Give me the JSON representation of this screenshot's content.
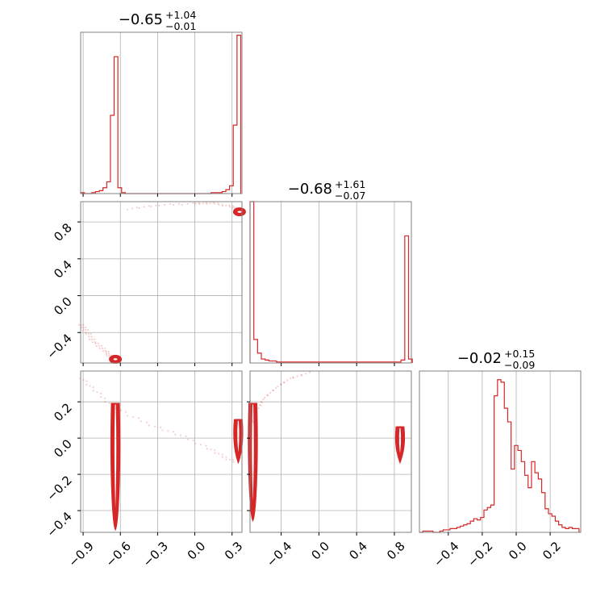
{
  "colors": {
    "accent": "#d62728",
    "grid": "#b0b0b0",
    "frame": "#808080"
  },
  "chart_data": [
    {
      "type": "histogram",
      "panel": "param-1",
      "title": {
        "value": "−0.65",
        "upper": "+1.04",
        "lower": "−0.01"
      },
      "xlim": [
        -0.92,
        0.38
      ],
      "bin_edges": [
        -0.92,
        -0.89,
        -0.86,
        -0.83,
        -0.8,
        -0.77,
        -0.74,
        -0.71,
        -0.68,
        -0.65,
        -0.62,
        -0.59,
        -0.56,
        -0.53,
        -0.5,
        -0.47,
        -0.44,
        -0.41,
        -0.38,
        -0.35,
        -0.32,
        -0.29,
        -0.26,
        -0.23,
        -0.2,
        -0.17,
        -0.14,
        -0.11,
        -0.08,
        -0.05,
        -0.02,
        0.01,
        0.04,
        0.07,
        0.1,
        0.13,
        0.16,
        0.19,
        0.22,
        0.25,
        0.28,
        0.31,
        0.34,
        0.37
      ],
      "counts": [
        1,
        0,
        0,
        1,
        2,
        3,
        6,
        12,
        80,
        140,
        6,
        1,
        0,
        0,
        0,
        0,
        0,
        0,
        0,
        0,
        0,
        0,
        0,
        0,
        0,
        0,
        0,
        0,
        0,
        0,
        0,
        0,
        0,
        0,
        0,
        1,
        1,
        1,
        2,
        4,
        8,
        70,
        162
      ],
      "ylim": [
        0,
        165
      ]
    },
    {
      "type": "histogram",
      "panel": "param-2",
      "title": {
        "value": "−0.68",
        "upper": "+1.61",
        "lower": "−0.07"
      },
      "xlim": [
        -0.73,
        0.98
      ],
      "bin_edges": [
        -0.73,
        -0.69,
        -0.65,
        -0.61,
        -0.57,
        -0.53,
        -0.49,
        -0.45,
        -0.41,
        -0.37,
        -0.33,
        -0.29,
        -0.25,
        -0.21,
        -0.17,
        -0.13,
        -0.09,
        -0.05,
        -0.01,
        0.03,
        0.07,
        0.11,
        0.15,
        0.19,
        0.23,
        0.27,
        0.31,
        0.35,
        0.39,
        0.43,
        0.47,
        0.51,
        0.55,
        0.59,
        0.63,
        0.67,
        0.71,
        0.75,
        0.79,
        0.83,
        0.87,
        0.91,
        0.95,
        0.99
      ],
      "counts": [
        165,
        24,
        10,
        4,
        3,
        2,
        2,
        1,
        1,
        1,
        1,
        1,
        1,
        1,
        1,
        1,
        1,
        1,
        1,
        1,
        1,
        1,
        1,
        1,
        1,
        1,
        1,
        1,
        1,
        1,
        1,
        1,
        1,
        1,
        1,
        1,
        1,
        1,
        1,
        1,
        3,
        130,
        4
      ],
      "ylim": [
        0,
        165
      ]
    },
    {
      "type": "histogram",
      "panel": "param-3",
      "title": {
        "value": "−0.02",
        "upper": "+0.15",
        "lower": "−0.09"
      },
      "xlim": [
        -0.57,
        0.38
      ],
      "bin_edges": [
        -0.57,
        -0.55,
        -0.53,
        -0.51,
        -0.49,
        -0.47,
        -0.45,
        -0.43,
        -0.41,
        -0.39,
        -0.37,
        -0.35,
        -0.33,
        -0.31,
        -0.29,
        -0.27,
        -0.25,
        -0.23,
        -0.21,
        -0.19,
        -0.17,
        -0.15,
        -0.13,
        -0.11,
        -0.09,
        -0.07,
        -0.05,
        -0.03,
        -0.01,
        0.01,
        0.03,
        0.05,
        0.07,
        0.09,
        0.11,
        0.13,
        0.15,
        0.17,
        0.19,
        0.21,
        0.23,
        0.25,
        0.27,
        0.29,
        0.31,
        0.33,
        0.35,
        0.37
      ],
      "counts": [
        0,
        1,
        1,
        1,
        0,
        0,
        1,
        2,
        2,
        3,
        3,
        4,
        5,
        6,
        7,
        9,
        11,
        10,
        12,
        18,
        20,
        22,
        110,
        123,
        121,
        100,
        89,
        51,
        70,
        66,
        57,
        46,
        36,
        57,
        48,
        43,
        32,
        19,
        15,
        13,
        9,
        6,
        4,
        3,
        4,
        3,
        3
      ],
      "ylim": [
        0,
        130
      ]
    },
    {
      "type": "contour",
      "panel": "param-1-vs-param-2",
      "xlim": [
        -0.92,
        0.38
      ],
      "ylim": [
        -0.73,
        1.02
      ],
      "mode_regions": [
        {
          "x": -0.64,
          "y": -0.69
        },
        {
          "x": 0.36,
          "y": 0.91
        }
      ],
      "tail_path": [
        [
          -0.92,
          -0.3
        ],
        [
          -0.87,
          -0.4
        ],
        [
          -0.8,
          -0.51
        ],
        [
          -0.72,
          -0.61
        ],
        [
          -0.66,
          -0.68
        ]
      ],
      "upper_arc": [
        [
          -0.55,
          0.94
        ],
        [
          -0.3,
          0.98
        ],
        [
          0.0,
          1.0
        ],
        [
          0.15,
          1.0
        ],
        [
          0.3,
          0.97
        ],
        [
          0.36,
          0.92
        ]
      ]
    },
    {
      "type": "contour",
      "panel": "param-1-vs-param-3",
      "xlim": [
        -0.92,
        0.38
      ],
      "ylim": [
        -0.52,
        0.37
      ],
      "band_left": {
        "x": -0.64,
        "y": [
          -0.5,
          0.19
        ]
      },
      "band_right": {
        "x": 0.35,
        "y": [
          -0.13,
          0.1
        ]
      },
      "scatter_arc": [
        [
          -0.92,
          0.34
        ],
        [
          -0.82,
          0.27
        ],
        [
          -0.7,
          0.2
        ],
        [
          -0.52,
          0.12
        ],
        [
          -0.3,
          0.06
        ],
        [
          -0.1,
          0.01
        ],
        [
          0.1,
          -0.05
        ],
        [
          0.22,
          -0.1
        ],
        [
          0.33,
          -0.13
        ]
      ]
    },
    {
      "type": "contour",
      "panel": "param-2-vs-param-3",
      "xlim": [
        -0.73,
        0.98
      ],
      "ylim": [
        -0.52,
        0.37
      ],
      "band_left": {
        "x": -0.7,
        "y": [
          -0.45,
          0.19
        ]
      },
      "band_right": {
        "x": 0.86,
        "y": [
          -0.13,
          0.06
        ]
      },
      "scatter_arc": [
        [
          -0.73,
          0.05
        ],
        [
          -0.66,
          0.15
        ],
        [
          -0.58,
          0.22
        ],
        [
          -0.45,
          0.28
        ],
        [
          -0.3,
          0.33
        ],
        [
          -0.1,
          0.36
        ]
      ]
    }
  ],
  "axes": {
    "row_y": {
      "y2": {
        "ticks": [
          0.8,
          0.4,
          0.0,
          -0.4
        ],
        "labels": [
          "0.8",
          "0.4",
          "0.0",
          "−0.4"
        ]
      },
      "y3": {
        "ticks": [
          0.2,
          0.0,
          -0.2,
          -0.4
        ],
        "labels": [
          "0.2",
          "0.0",
          "−0.2",
          "−0.4"
        ]
      }
    },
    "col_x": {
      "x1": {
        "ticks": [
          -0.9,
          -0.6,
          -0.3,
          0.0,
          0.3
        ],
        "labels": [
          "−0.9",
          "−0.6",
          "−0.3",
          "0.0",
          "0.3"
        ]
      },
      "x2": {
        "ticks": [
          -0.4,
          0.0,
          0.4,
          0.8
        ],
        "labels": [
          "−0.4",
          "0.0",
          "0.4",
          "0.8"
        ]
      },
      "x3": {
        "ticks": [
          -0.4,
          -0.2,
          0.0,
          0.2
        ],
        "labels": [
          "−0.4",
          "−0.2",
          "0.0",
          "0.2"
        ]
      }
    }
  }
}
